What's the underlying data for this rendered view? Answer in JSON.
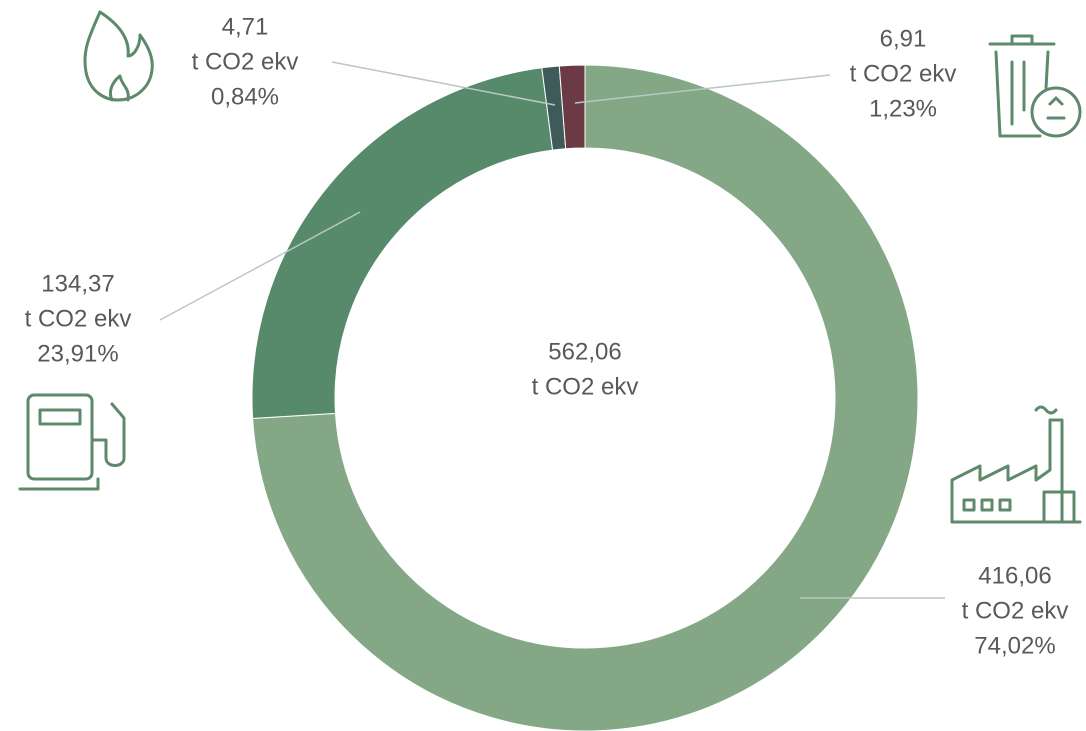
{
  "chart_data": {
    "type": "donut",
    "values": [
      416.06,
      134.37,
      4.71,
      6.91
    ],
    "value_labels": [
      "416,06",
      "134,37",
      "4,71",
      "6,91"
    ],
    "percentages": [
      74.02,
      23.91,
      0.84,
      1.23
    ],
    "percentage_labels": [
      "74,02%",
      "23,91%",
      "0,84%",
      "1,23%"
    ],
    "unit": "t CO2 ekv",
    "colors": [
      "#84a886",
      "#578a6b",
      "#3e5a59",
      "#6b3a44"
    ],
    "center": {
      "value": 562.06,
      "label": "562,06"
    }
  }
}
